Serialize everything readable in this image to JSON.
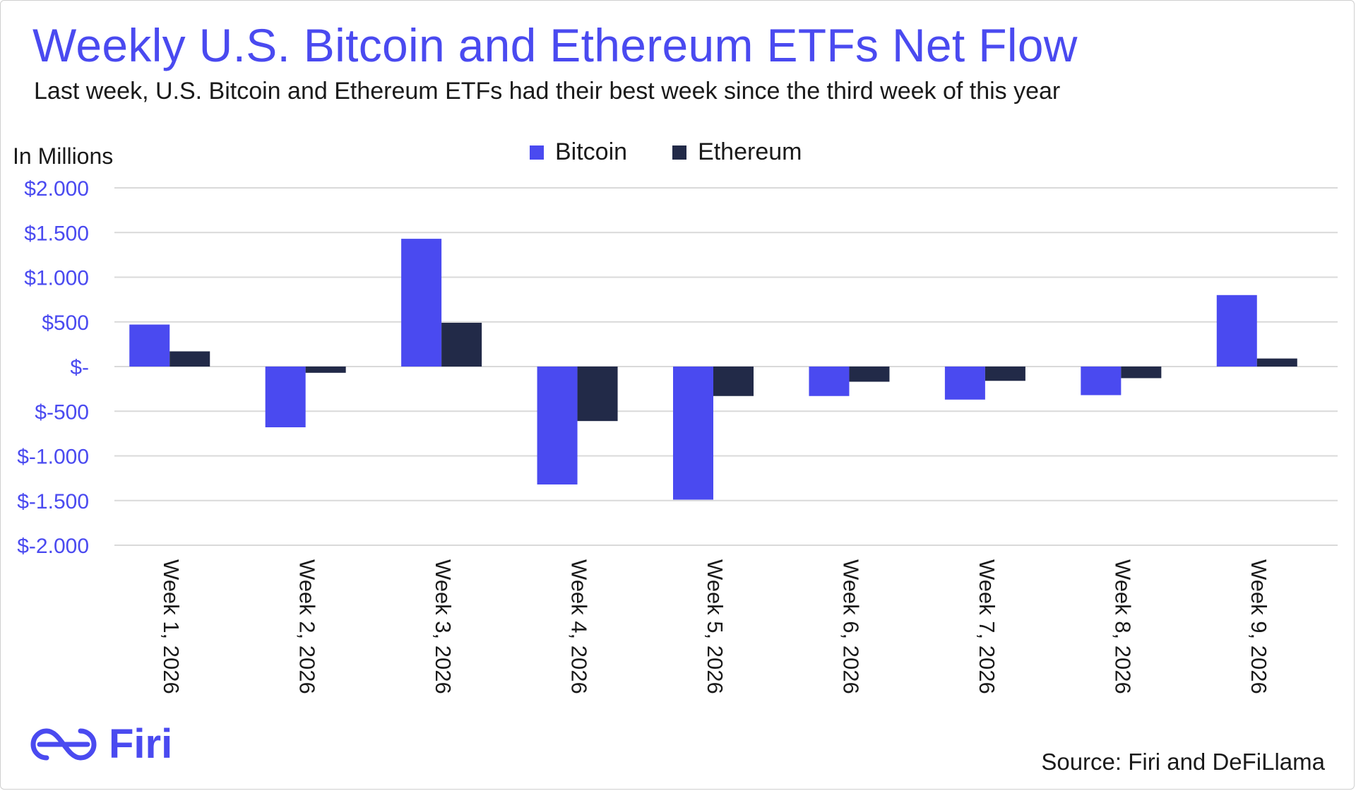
{
  "title": "Weekly U.S. Bitcoin and Ethereum ETFs Net Flow",
  "subtitle": "Last week, U.S. Bitcoin and Ethereum ETFs had their best week since the third week of this year",
  "unit_label": "In Millions",
  "source": "Source: Firi and DeFiLlama",
  "logo": {
    "text": "Firi",
    "icon": "firi-logo-icon"
  },
  "colors": {
    "bitcoin": "#4a4af0",
    "ethereum": "#222a48",
    "accent": "#4a4af0",
    "grid": "#d9d9d9"
  },
  "chart_data": {
    "type": "bar",
    "title": "Weekly U.S. Bitcoin and Ethereum ETFs Net Flow",
    "ylabel": "In Millions",
    "ylim": [
      -2000,
      2000
    ],
    "yticks": [
      2000,
      1500,
      1000,
      500,
      0,
      -500,
      -1000,
      -1500,
      -2000
    ],
    "ytick_labels": [
      "$2.000",
      "$1.500",
      "$1.000",
      "$500",
      "$-",
      "$-500",
      "$-1.000",
      "$-1.500",
      "$-2.000"
    ],
    "categories": [
      "Week 1, 2026",
      "Week 2, 2026",
      "Week 3, 2026",
      "Week 4, 2026",
      "Week 5, 2026",
      "Week 6, 2026",
      "Week 7, 2026",
      "Week 8, 2026",
      "Week 9, 2026"
    ],
    "legend_position": "top-center",
    "grid": true,
    "series": [
      {
        "name": "Bitcoin",
        "values": [
          470,
          -680,
          1430,
          -1320,
          -1490,
          -330,
          -370,
          -320,
          800
        ]
      },
      {
        "name": "Ethereum",
        "values": [
          170,
          -70,
          490,
          -610,
          -330,
          -170,
          -160,
          -130,
          90
        ]
      }
    ]
  }
}
